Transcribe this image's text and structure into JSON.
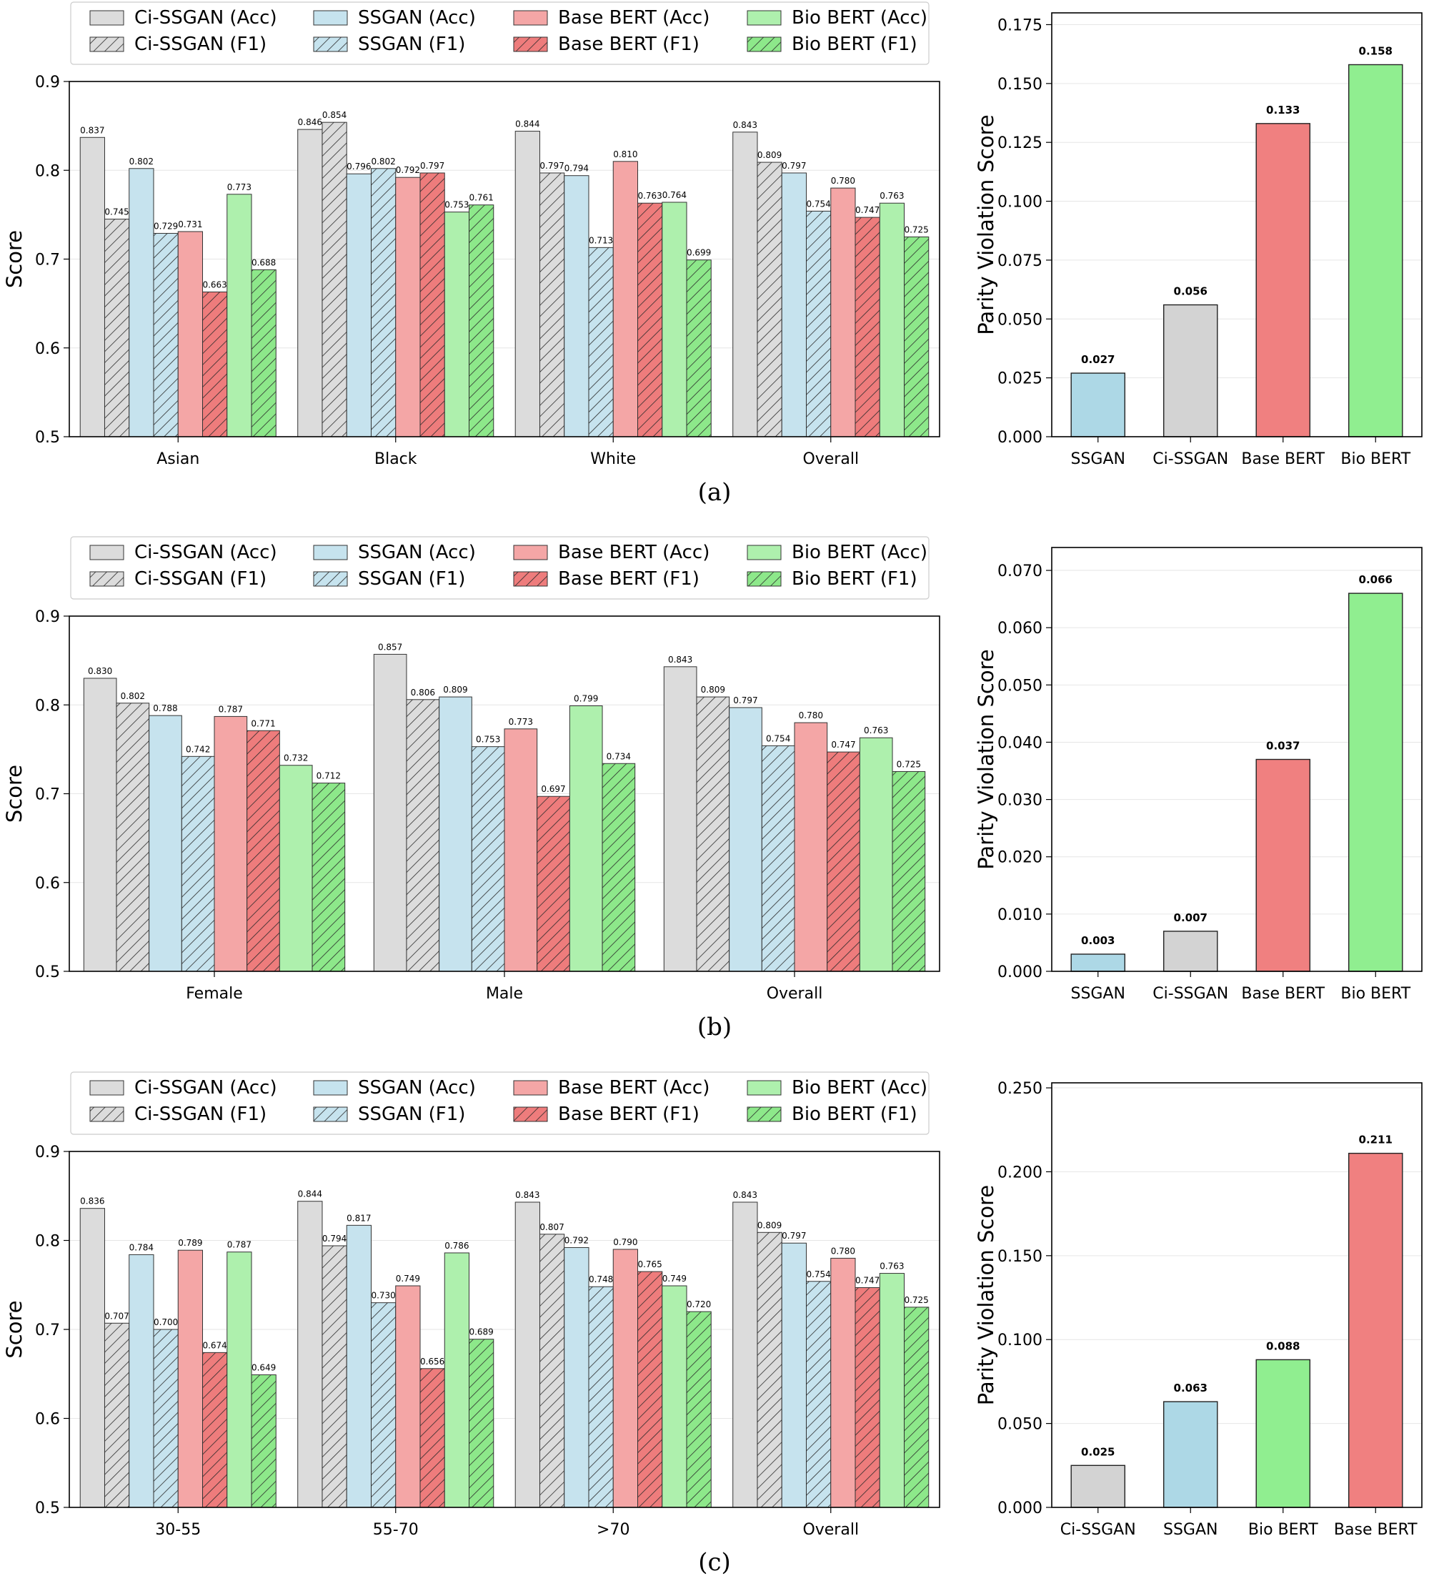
{
  "colors": {
    "ci_ssgan": "#dcdcdc",
    "ssgan": "#c6e3ee",
    "base_bert": "#f4a6a6",
    "base_bert_f1": "#ee7c7c",
    "bio_bert": "#aef0ad",
    "bio_bert_f1": "#8de88a",
    "par_ssgan": "#add8e6",
    "par_ci": "#d3d3d3",
    "par_base": "#f08080",
    "par_bio": "#90ee90"
  },
  "legend": [
    {
      "label": "Ci-SSGAN (Acc)",
      "model": "ci_ssgan",
      "hatch": false
    },
    {
      "label": "Ci-SSGAN (F1)",
      "model": "ci_ssgan",
      "hatch": true
    },
    {
      "label": "SSGAN (Acc)",
      "model": "ssgan",
      "hatch": false
    },
    {
      "label": "SSGAN (F1)",
      "model": "ssgan",
      "hatch": true
    },
    {
      "label": "Base BERT (Acc)",
      "model": "base_bert",
      "hatch": false
    },
    {
      "label": "Base BERT (F1)",
      "model": "base_bert",
      "hatch": true
    },
    {
      "label": "Bio BERT (Acc)",
      "model": "bio_bert",
      "hatch": false
    },
    {
      "label": "Bio BERT (F1)",
      "model": "bio_bert",
      "hatch": true
    }
  ],
  "chart_data": [
    {
      "panel": "a",
      "type": "bar",
      "caption": "(a)",
      "ylabel": "Score",
      "ylim": [
        0.5,
        0.9
      ],
      "yticks": [
        "0.5",
        "0.6",
        "0.7",
        "0.8",
        "0.9"
      ],
      "categories": [
        "Asian",
        "Black",
        "White",
        "Overall"
      ],
      "series": [
        {
          "name": "Ci-SSGAN (Acc)",
          "values": [
            0.837,
            0.846,
            0.844,
            0.843
          ],
          "labels": [
            "0.837",
            "0.846",
            "0.844",
            "0.843"
          ]
        },
        {
          "name": "Ci-SSGAN (F1)",
          "values": [
            0.745,
            0.854,
            0.797,
            0.809
          ],
          "labels": [
            "0.745",
            "0.854",
            "0.797",
            "0.809"
          ]
        },
        {
          "name": "SSGAN (Acc)",
          "values": [
            0.802,
            0.796,
            0.794,
            0.797
          ],
          "labels": [
            "0.802",
            "0.796",
            "0.794",
            "0.797"
          ]
        },
        {
          "name": "SSGAN (F1)",
          "values": [
            0.729,
            0.802,
            0.713,
            0.754
          ],
          "labels": [
            "0.729",
            "0.802",
            "0.713",
            "0.754"
          ]
        },
        {
          "name": "Base BERT (Acc)",
          "values": [
            0.731,
            0.792,
            0.81,
            0.78
          ],
          "labels": [
            "0.731",
            "0.792",
            "0.810",
            "0.780"
          ]
        },
        {
          "name": "Base BERT (F1)",
          "values": [
            0.663,
            0.797,
            0.763,
            0.747
          ],
          "labels": [
            "0.663",
            "0.797",
            "0.763",
            "0.747"
          ]
        },
        {
          "name": "Bio BERT (Acc)",
          "values": [
            0.773,
            0.753,
            0.764,
            0.763
          ],
          "labels": [
            "0.773",
            "0.753",
            "0.764",
            "0.763"
          ]
        },
        {
          "name": "Bio BERT (F1)",
          "values": [
            0.688,
            0.761,
            0.699,
            0.725
          ],
          "labels": [
            "0.688",
            "0.761",
            "0.699",
            "0.725"
          ]
        }
      ]
    },
    {
      "panel": "a",
      "type": "bar",
      "ylabel": "Parity Violation Score",
      "ylim": [
        0,
        0.18
      ],
      "yticks": [
        "0.000",
        "0.025",
        "0.050",
        "0.075",
        "0.100",
        "0.125",
        "0.150",
        "0.175"
      ],
      "categories": [
        "SSGAN",
        "Ci-SSGAN",
        "Base BERT",
        "Bio BERT"
      ],
      "values": [
        0.027,
        0.056,
        0.133,
        0.158
      ],
      "labels": [
        "0.027",
        "0.056",
        "0.133",
        "0.158"
      ],
      "bar_colors": [
        "par_ssgan",
        "par_ci",
        "par_base",
        "par_bio"
      ]
    },
    {
      "panel": "b",
      "type": "bar",
      "caption": "(b)",
      "ylabel": "Score",
      "ylim": [
        0.5,
        0.9
      ],
      "yticks": [
        "0.5",
        "0.6",
        "0.7",
        "0.8",
        "0.9"
      ],
      "categories": [
        "Female",
        "Male",
        "Overall"
      ],
      "series": [
        {
          "name": "Ci-SSGAN (Acc)",
          "values": [
            0.83,
            0.857,
            0.843
          ],
          "labels": [
            "0.830",
            "0.857",
            "0.843"
          ]
        },
        {
          "name": "Ci-SSGAN (F1)",
          "values": [
            0.802,
            0.806,
            0.809
          ],
          "labels": [
            "0.802",
            "0.806",
            "0.809"
          ]
        },
        {
          "name": "SSGAN (Acc)",
          "values": [
            0.788,
            0.809,
            0.797
          ],
          "labels": [
            "0.788",
            "0.809",
            "0.797"
          ]
        },
        {
          "name": "SSGAN (F1)",
          "values": [
            0.742,
            0.753,
            0.754
          ],
          "labels": [
            "0.742",
            "0.753",
            "0.754"
          ]
        },
        {
          "name": "Base BERT (Acc)",
          "values": [
            0.787,
            0.773,
            0.78
          ],
          "labels": [
            "0.787",
            "0.773",
            "0.780"
          ]
        },
        {
          "name": "Base BERT (F1)",
          "values": [
            0.771,
            0.697,
            0.747
          ],
          "labels": [
            "0.771",
            "0.697",
            "0.747"
          ]
        },
        {
          "name": "Bio BERT (Acc)",
          "values": [
            0.732,
            0.799,
            0.763
          ],
          "labels": [
            "0.732",
            "0.799",
            "0.763"
          ]
        },
        {
          "name": "Bio BERT (F1)",
          "values": [
            0.712,
            0.734,
            0.725
          ],
          "labels": [
            "0.712",
            "0.734",
            "0.725"
          ]
        }
      ]
    },
    {
      "panel": "b",
      "type": "bar",
      "ylabel": "Parity Violation Score",
      "ylim": [
        0,
        0.074
      ],
      "yticks": [
        "0.000",
        "0.010",
        "0.020",
        "0.030",
        "0.040",
        "0.050",
        "0.060",
        "0.070"
      ],
      "categories": [
        "SSGAN",
        "Ci-SSGAN",
        "Base BERT",
        "Bio BERT"
      ],
      "values": [
        0.003,
        0.007,
        0.037,
        0.066
      ],
      "labels": [
        "0.003",
        "0.007",
        "0.037",
        "0.066"
      ],
      "bar_colors": [
        "par_ssgan",
        "par_ci",
        "par_base",
        "par_bio"
      ]
    },
    {
      "panel": "c",
      "type": "bar",
      "caption": "(c)",
      "ylabel": "Score",
      "ylim": [
        0.5,
        0.9
      ],
      "yticks": [
        "0.5",
        "0.6",
        "0.7",
        "0.8",
        "0.9"
      ],
      "categories": [
        "30-55",
        "55-70",
        ">70",
        "Overall"
      ],
      "series": [
        {
          "name": "Ci-SSGAN (Acc)",
          "values": [
            0.836,
            0.844,
            0.843,
            0.843
          ],
          "labels": [
            "0.836",
            "0.844",
            "0.843",
            "0.843"
          ]
        },
        {
          "name": "Ci-SSGAN (F1)",
          "values": [
            0.707,
            0.794,
            0.807,
            0.809
          ],
          "labels": [
            "0.707",
            "0.794",
            "0.807",
            "0.809"
          ]
        },
        {
          "name": "SSGAN (Acc)",
          "values": [
            0.784,
            0.817,
            0.792,
            0.797
          ],
          "labels": [
            "0.784",
            "0.817",
            "0.792",
            "0.797"
          ]
        },
        {
          "name": "SSGAN (F1)",
          "values": [
            0.7,
            0.73,
            0.748,
            0.754
          ],
          "labels": [
            "0.700",
            "0.730",
            "0.748",
            "0.754"
          ]
        },
        {
          "name": "Base BERT (Acc)",
          "values": [
            0.789,
            0.749,
            0.79,
            0.78
          ],
          "labels": [
            "0.789",
            "0.749",
            "0.790",
            "0.780"
          ]
        },
        {
          "name": "Base BERT (F1)",
          "values": [
            0.674,
            0.656,
            0.765,
            0.747
          ],
          "labels": [
            "0.674",
            "0.656",
            "0.765",
            "0.747"
          ]
        },
        {
          "name": "Bio BERT (Acc)",
          "values": [
            0.787,
            0.786,
            0.749,
            0.763
          ],
          "labels": [
            "0.787",
            "0.786",
            "0.749",
            "0.763"
          ]
        },
        {
          "name": "Bio BERT (F1)",
          "values": [
            0.649,
            0.689,
            0.72,
            0.725
          ],
          "labels": [
            "0.649",
            "0.689",
            "0.720",
            "0.725"
          ]
        }
      ]
    },
    {
      "panel": "c",
      "type": "bar",
      "ylabel": "Parity Violation Score",
      "ylim": [
        0,
        0.253
      ],
      "yticks": [
        "0.000",
        "0.050",
        "0.100",
        "0.150",
        "0.200",
        "0.250"
      ],
      "categories": [
        "Ci-SSGAN",
        "SSGAN",
        "Bio BERT",
        "Base BERT"
      ],
      "values": [
        0.025,
        0.063,
        0.088,
        0.211
      ],
      "labels": [
        "0.025",
        "0.063",
        "0.088",
        "0.211"
      ],
      "bar_colors": [
        "par_ci",
        "par_ssgan",
        "par_bio",
        "par_base"
      ]
    }
  ]
}
